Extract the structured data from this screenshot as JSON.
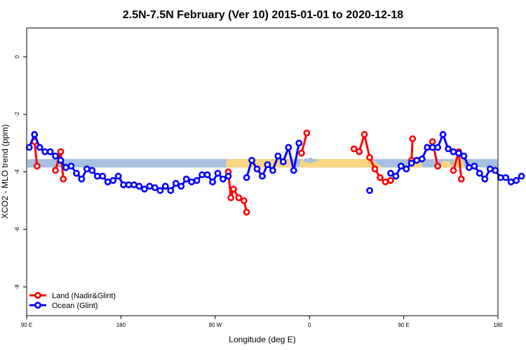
{
  "chart_data": {
    "type": "line",
    "title": "2.5N-7.5N February (Ver 10)   2015-01-01 to 2020-12-18",
    "xlabel": "Longitude (deg E)",
    "ylabel": "XCO2 - MLO trend (ppm)",
    "x_tick_labels": [
      "90 E",
      "180",
      "90 W",
      "0",
      "90 E",
      "180"
    ],
    "x_tick_values": [
      90,
      180,
      270,
      360,
      450,
      540
    ],
    "xlim": [
      90,
      540
    ],
    "y_tick_labels": [
      "0",
      "-2",
      "-4",
      "-6",
      "-8"
    ],
    "y_tick_values": [
      0,
      -2,
      -4,
      -6,
      -8
    ],
    "ylim": [
      -9,
      1
    ],
    "land_band": {
      "y_min": -3.8,
      "y_max": -3.58,
      "land_color": "#fcd581",
      "ocean_color": "#a7bfe0"
    },
    "legend": {
      "position": "bottom-left"
    },
    "series": [
      {
        "name": "Land (Nadir&Glint)",
        "color": "#ff0000",
        "segments": [
          [
            [
              97.5,
              -2.95
            ],
            [
              100,
              -3.8
            ]
          ],
          [
            [
              117.5,
              -3.95
            ],
            [
              122.5,
              -3.3
            ],
            [
              125,
              -4.25
            ]
          ],
          [
            [
              282.5,
              -4.0
            ],
            [
              285,
              -4.9
            ],
            [
              287.5,
              -4.6
            ],
            [
              292.5,
              -4.9
            ],
            [
              297.5,
              -5.0
            ],
            [
              300,
              -5.4
            ]
          ],
          [
            [
              352.5,
              -3.35
            ],
            [
              357.5,
              -2.65
            ]
          ],
          [
            [
              402.5,
              -3.2
            ],
            [
              407.5,
              -3.3
            ],
            [
              412.5,
              -2.7
            ],
            [
              417.5,
              -3.5
            ],
            [
              422.5,
              -3.9
            ],
            [
              427.5,
              -4.2
            ],
            [
              432.5,
              -4.35
            ],
            [
              437.5,
              -4.3
            ]
          ],
          [
            [
              457.5,
              -3.6
            ],
            [
              458.5,
              -2.85
            ]
          ],
          [
            [
              477.5,
              -2.95
            ],
            [
              482.5,
              -3.8
            ]
          ],
          [
            [
              497.5,
              -3.95
            ],
            [
              502.5,
              -3.3
            ],
            [
              505,
              -4.25
            ]
          ]
        ]
      },
      {
        "name": "Ocean (Glint)",
        "color": "#0000ff",
        "segments": [
          [
            [
              92.5,
              -3.15
            ],
            [
              97.5,
              -2.7
            ],
            [
              102.5,
              -3.15
            ],
            [
              107.5,
              -3.3
            ],
            [
              112.5,
              -3.3
            ],
            [
              117.5,
              -3.45
            ],
            [
              122.5,
              -3.6
            ],
            [
              127.5,
              -3.85
            ],
            [
              132.5,
              -3.8
            ],
            [
              137.5,
              -4.05
            ],
            [
              142.5,
              -4.25
            ],
            [
              147.5,
              -3.9
            ],
            [
              152.5,
              -3.95
            ],
            [
              157.5,
              -4.15
            ],
            [
              162.5,
              -4.15
            ],
            [
              167.5,
              -4.35
            ],
            [
              172.5,
              -4.3
            ],
            [
              177.5,
              -4.15
            ],
            [
              182.5,
              -4.45
            ],
            [
              187.5,
              -4.45
            ],
            [
              192.5,
              -4.45
            ],
            [
              197.5,
              -4.5
            ],
            [
              202.5,
              -4.6
            ],
            [
              207.5,
              -4.5
            ],
            [
              212.5,
              -4.55
            ],
            [
              217.5,
              -4.65
            ],
            [
              222.5,
              -4.5
            ],
            [
              227.5,
              -4.65
            ],
            [
              232.5,
              -4.4
            ],
            [
              237.5,
              -4.5
            ],
            [
              242.5,
              -4.25
            ],
            [
              247.5,
              -4.35
            ],
            [
              252.5,
              -4.3
            ],
            [
              257.5,
              -4.1
            ],
            [
              262.5,
              -4.1
            ],
            [
              267.5,
              -4.35
            ],
            [
              272.5,
              -4.05
            ],
            [
              277.5,
              -4.25
            ],
            [
              282.5,
              -4.15
            ]
          ],
          [
            [
              300,
              -4.2
            ],
            [
              305,
              -3.6
            ],
            [
              310,
              -3.9
            ],
            [
              315,
              -4.15
            ],
            [
              320,
              -3.75
            ],
            [
              325,
              -3.95
            ],
            [
              330,
              -3.45
            ],
            [
              335,
              -3.65
            ],
            [
              340,
              -3.15
            ],
            [
              345,
              -3.95
            ],
            [
              350,
              -3.0
            ]
          ],
          [
            [
              417.5,
              -4.65
            ]
          ],
          [
            [
              437.5,
              -4.05
            ],
            [
              442.5,
              -4.15
            ],
            [
              447.5,
              -3.8
            ],
            [
              452.5,
              -3.9
            ],
            [
              457.5,
              -3.7
            ],
            [
              462.5,
              -3.6
            ],
            [
              467.5,
              -3.55
            ],
            [
              472.5,
              -3.15
            ],
            [
              477.5,
              -3.15
            ],
            [
              482.5,
              -3.15
            ],
            [
              487.5,
              -2.7
            ],
            [
              492.5,
              -3.2
            ],
            [
              497.5,
              -3.3
            ],
            [
              502.5,
              -3.35
            ],
            [
              507.5,
              -3.45
            ],
            [
              512.5,
              -3.85
            ],
            [
              517.5,
              -3.8
            ],
            [
              522.5,
              -4.05
            ],
            [
              527.5,
              -4.25
            ],
            [
              532.5,
              -3.9
            ],
            [
              537.5,
              -3.95
            ],
            [
              542.5,
              -4.2
            ],
            [
              547.5,
              -4.2
            ],
            [
              552.5,
              -4.35
            ],
            [
              557.5,
              -4.3
            ],
            [
              562.5,
              -4.15
            ]
          ]
        ]
      }
    ]
  }
}
